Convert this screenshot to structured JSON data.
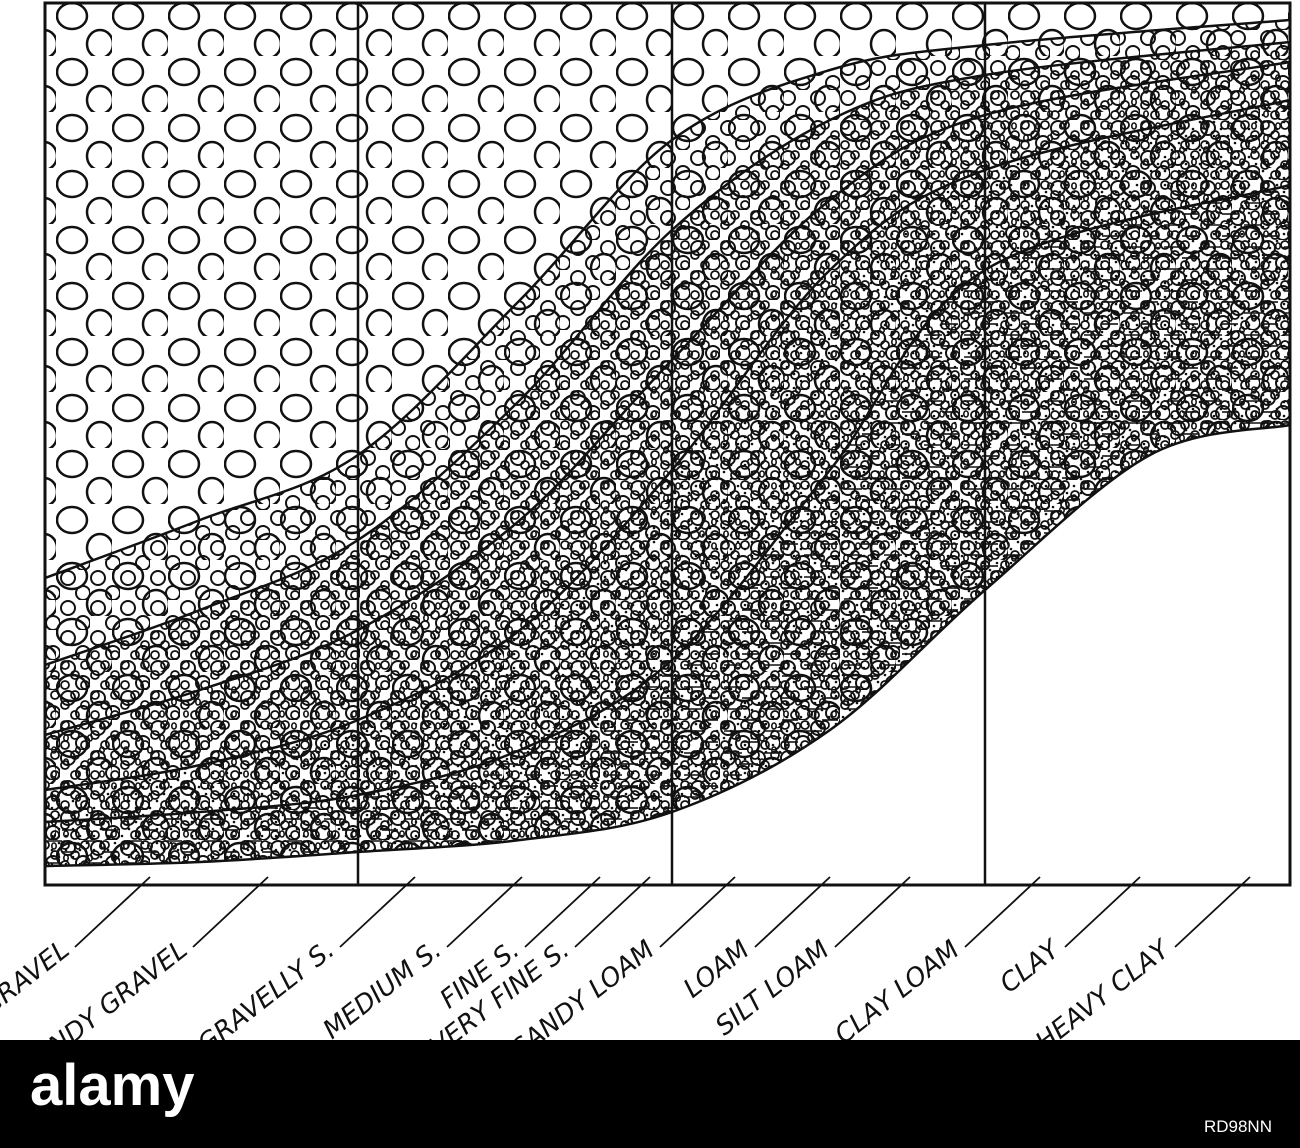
{
  "labels": [
    "GRAVEL",
    "SANDY GRAVEL",
    "GRAVELLY S.",
    "MEDIUM S.",
    "FINE S.",
    "VERY FINE S.",
    "SANDY LOAM",
    "LOAM",
    "SILT LOAM",
    "CLAY LOAM",
    "CLAY",
    "HEAVY CLAY"
  ],
  "watermark": {
    "logo": "alamy",
    "id": "RD98NN"
  }
}
